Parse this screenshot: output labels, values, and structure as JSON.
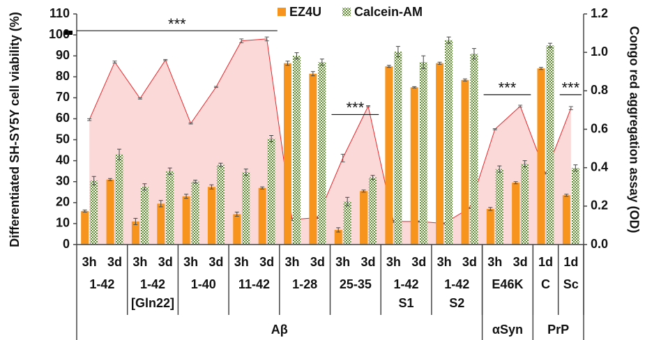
{
  "chart_data": {
    "type": "bar",
    "axis_label_left": "Differentiated SH-SY5Y cell viability (%)",
    "axis_label_right": "Congo red aggregation assay (OD)",
    "categories": [
      "3h",
      "3d",
      "3h",
      "3d",
      "3h",
      "3d",
      "3h",
      "3d",
      "3h",
      "3d",
      "3h",
      "3d",
      "3h",
      "3d",
      "3h",
      "3d",
      "3h",
      "3d",
      "1d",
      "1d"
    ],
    "groups": [
      {
        "label": "1-42",
        "size": 2
      },
      {
        "label": "1-42",
        "sublabel": "[Gln22]",
        "size": 2
      },
      {
        "label": "1-40",
        "size": 2
      },
      {
        "label": "11-42",
        "size": 2
      },
      {
        "label": "1-28",
        "size": 2
      },
      {
        "label": "25-35",
        "size": 2
      },
      {
        "label": "1-42",
        "sublabel": "S1",
        "size": 2
      },
      {
        "label": "1-42",
        "sublabel": "S2",
        "size": 2
      },
      {
        "label": "E46K",
        "size": 2
      },
      {
        "label": "C",
        "size": 1
      },
      {
        "label": "Sc",
        "size": 1
      }
    ],
    "families": [
      {
        "label": "Aβ",
        "size": 16
      },
      {
        "label": "αSyn",
        "size": 2
      },
      {
        "label": "PrP",
        "size": 2
      }
    ],
    "series": [
      {
        "name": "EZ4U",
        "color": "#f7941d",
        "values": [
          16,
          31,
          11,
          19.5,
          23,
          27.5,
          14.5,
          27,
          86.5,
          81.5,
          7,
          25.5,
          85,
          75,
          86.5,
          78.5,
          17,
          29.5,
          84,
          23.5
        ],
        "errors": [
          0.5,
          0.5,
          1.5,
          1.5,
          1,
          1,
          1,
          0.5,
          1,
          1,
          1,
          0.5,
          0.5,
          0.3,
          0.5,
          0.5,
          0.7,
          0.5,
          0.5,
          0.5
        ]
      },
      {
        "name": "Calcein-AM",
        "color": "#5b8c2a",
        "pattern": "checker",
        "values": [
          30.5,
          43,
          27.5,
          35,
          30,
          38,
          34.5,
          50.5,
          90,
          87,
          20.5,
          32,
          92,
          87,
          97.5,
          91,
          36,
          38.5,
          95,
          36.5
        ],
        "errors": [
          2,
          2.5,
          1.5,
          1.5,
          0.7,
          0.8,
          1.5,
          1.5,
          1.5,
          1.5,
          2,
          1,
          2.5,
          3,
          1.5,
          2.5,
          1.5,
          1.5,
          1,
          1.5
        ]
      },
      {
        "type": "area",
        "axis": "y2",
        "color": "#e8262a",
        "fill": "#fcd9d9",
        "values": [
          0.65,
          0.95,
          0.76,
          0.96,
          0.63,
          0.82,
          1.06,
          1.07,
          0.13,
          0.14,
          0.45,
          0.72,
          0.12,
          0.12,
          0.11,
          0.19,
          0.6,
          0.72,
          0.37,
          0.71
        ],
        "errors": [
          0.005,
          0.005,
          0.003,
          0.003,
          0.003,
          0.003,
          0.01,
          0.01,
          0.005,
          0.005,
          0.02,
          0.003,
          0.005,
          0.003,
          0.003,
          0.003,
          0.003,
          0.005,
          0.003,
          0.008
        ]
      }
    ],
    "annotations": [
      {
        "text": "***",
        "from": 0,
        "to": 7,
        "y": 102
      },
      {
        "text": "***",
        "from": 10,
        "to": 11,
        "y": 62
      },
      {
        "text": "***",
        "from": 16,
        "to": 17,
        "y": 71.5
      },
      {
        "text": "***",
        "from": 19,
        "to": 19,
        "y": 71.5
      }
    ],
    "ylim": [
      0,
      110
    ],
    "yticks": [
      0,
      10,
      20,
      30,
      40,
      50,
      60,
      70,
      80,
      90,
      100,
      110
    ],
    "y2lim": [
      0,
      1.2
    ],
    "y2ticks": [
      {
        "value": 0,
        "label": "0.0"
      },
      0.2,
      0.4,
      0.6,
      0.8,
      {
        "value": 1,
        "label": "1.0"
      },
      1.2
    ],
    "legend": "top",
    "grid": false
  }
}
